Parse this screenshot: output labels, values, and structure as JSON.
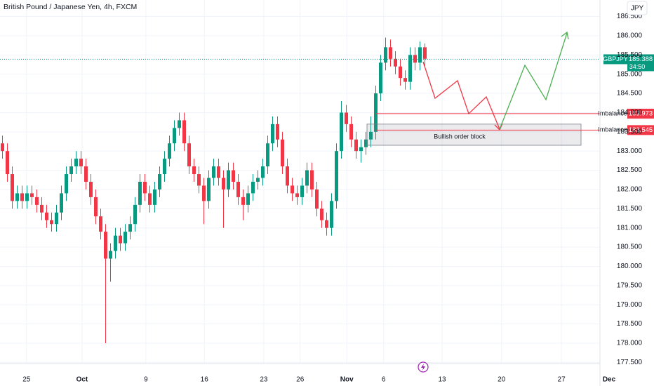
{
  "chart_data": {
    "type": "candlestick",
    "title": "British Pound / Japanese Yen, 4h, FXCM",
    "currency": "JPY",
    "up_color": "#089981",
    "down_color": "#f23645",
    "grid": true,
    "xlim": [
      0,
      133.14
    ],
    "xticks": [
      {
        "value": 5.4,
        "label": "25"
      },
      {
        "value": 16.7,
        "label": "Oct"
      },
      {
        "value": 29.7,
        "label": "9"
      },
      {
        "value": 41.6,
        "label": "16"
      },
      {
        "value": 53.7,
        "label": "23"
      },
      {
        "value": 61.1,
        "label": "26"
      },
      {
        "value": 70.6,
        "label": "Nov"
      },
      {
        "value": 78.1,
        "label": "6"
      },
      {
        "value": 90,
        "label": "13"
      },
      {
        "value": 102.1,
        "label": "20"
      },
      {
        "value": 114.3,
        "label": "27"
      },
      {
        "value": 124,
        "label": "Dec"
      }
    ],
    "ylim": [
      177.47,
      186.93
    ],
    "yticks": [
      {
        "value": 177.5,
        "label": "177.500"
      },
      {
        "value": 178,
        "label": "178.000"
      },
      {
        "value": 178.5,
        "label": "178.500"
      },
      {
        "value": 179,
        "label": "179.000"
      },
      {
        "value": 179.5,
        "label": "179.500"
      },
      {
        "value": 180,
        "label": "180.000"
      },
      {
        "value": 180.5,
        "label": "180.500"
      },
      {
        "value": 181,
        "label": "181.000"
      },
      {
        "value": 181.5,
        "label": "181.500"
      },
      {
        "value": 182,
        "label": "182.000"
      },
      {
        "value": 182.5,
        "label": "182.500"
      },
      {
        "value": 183,
        "label": "183.000"
      },
      {
        "value": 183.5,
        "label": "183.500"
      },
      {
        "value": 184,
        "label": "184.000"
      },
      {
        "value": 184.5,
        "label": "184.500"
      },
      {
        "value": 185,
        "label": "185.000"
      },
      {
        "value": 185.5,
        "label": "185.500"
      },
      {
        "value": 186,
        "label": "186.000"
      },
      {
        "value": 186.5,
        "label": "186.500"
      }
    ],
    "open": [
      183.2,
      183.0,
      182.4,
      181.7,
      181.9,
      181.7,
      181.9,
      181.8,
      181.6,
      181.4,
      181.2,
      181.1,
      181.4,
      181.9,
      182.4,
      182.6,
      182.8,
      182.6,
      182.2,
      181.8,
      181.3,
      180.9,
      180.2,
      180.4,
      180.8,
      180.6,
      180.9,
      181.1,
      181.6,
      182.2,
      181.9,
      181.6,
      182.0,
      182.4,
      182.8,
      183.2,
      183.6,
      183.8,
      183.2,
      182.6,
      182.4,
      182.1,
      181.7,
      182.3,
      182.6,
      182.3,
      182.0,
      182.5,
      182.2,
      181.8,
      181.6,
      181.9,
      182.2,
      182.3,
      182.6,
      183.2,
      183.7,
      183.3,
      182.6,
      182.1,
      181.9,
      181.8,
      182.1,
      182.5,
      182.0,
      181.5,
      181.2,
      181.0,
      181.7,
      183.0,
      184.0,
      183.7,
      183.3,
      183.0,
      183.1,
      183.3,
      183.5,
      184.5,
      185.3,
      185.7,
      185.4,
      185.2,
      184.9,
      184.8,
      185.5,
      185.3,
      185.7
    ],
    "high": [
      183.4,
      183.2,
      182.6,
      182.1,
      182.1,
      182.1,
      182.1,
      182.0,
      181.8,
      181.6,
      181.4,
      181.6,
      182.1,
      182.6,
      182.8,
      183.0,
      183.0,
      182.8,
      182.4,
      182.0,
      181.5,
      181.1,
      180.6,
      181.0,
      181.0,
      181.1,
      181.3,
      181.8,
      182.4,
      182.4,
      182.1,
      182.2,
      182.6,
      183.0,
      183.4,
      183.8,
      184.0,
      184.0,
      183.4,
      182.8,
      182.6,
      182.3,
      182.5,
      182.8,
      182.8,
      182.5,
      182.7,
      182.7,
      182.4,
      182.0,
      182.1,
      182.4,
      182.5,
      182.8,
      183.4,
      183.9,
      183.9,
      183.5,
      182.8,
      182.3,
      182.1,
      182.3,
      182.7,
      182.7,
      182.2,
      181.7,
      181.4,
      181.9,
      183.2,
      184.3,
      184.2,
      183.9,
      183.5,
      183.3,
      183.5,
      183.9,
      184.7,
      185.5,
      185.95,
      185.9,
      185.6,
      185.4,
      185.1,
      185.7,
      185.7,
      185.85,
      185.8
    ],
    "low": [
      182.8,
      182.2,
      181.5,
      181.5,
      181.5,
      181.5,
      181.6,
      181.4,
      181.2,
      181.0,
      180.9,
      180.9,
      181.2,
      181.7,
      182.2,
      182.4,
      182.4,
      182.0,
      181.6,
      181.1,
      180.7,
      178.0,
      179.6,
      180.2,
      180.4,
      180.4,
      180.7,
      180.9,
      181.4,
      181.7,
      181.4,
      181.4,
      181.8,
      182.2,
      182.6,
      183.0,
      183.4,
      183.0,
      182.4,
      182.2,
      181.9,
      181.1,
      181.5,
      182.1,
      182.1,
      181.0,
      181.8,
      182.0,
      181.6,
      181.2,
      181.4,
      181.7,
      182.0,
      182.1,
      182.4,
      183.0,
      183.1,
      182.4,
      181.9,
      181.7,
      181.6,
      181.6,
      181.9,
      181.8,
      181.3,
      181.0,
      180.8,
      180.8,
      181.5,
      182.8,
      183.5,
      183.1,
      182.8,
      182.7,
      182.9,
      183.1,
      183.3,
      184.3,
      185.1,
      185.2,
      185.0,
      184.7,
      184.6,
      184.6,
      185.1,
      185.1,
      185.2
    ],
    "close": [
      183.0,
      182.4,
      181.7,
      181.9,
      181.7,
      181.9,
      181.8,
      181.6,
      181.4,
      181.2,
      181.1,
      181.4,
      181.9,
      182.4,
      182.6,
      182.8,
      182.6,
      182.2,
      181.8,
      181.3,
      180.9,
      180.2,
      180.4,
      180.8,
      180.6,
      180.9,
      181.1,
      181.6,
      182.2,
      181.9,
      181.6,
      182.0,
      182.4,
      182.8,
      183.2,
      183.6,
      183.8,
      183.2,
      182.6,
      182.4,
      182.1,
      181.7,
      182.3,
      182.6,
      182.3,
      182.0,
      182.5,
      182.2,
      181.8,
      181.6,
      181.9,
      182.2,
      182.3,
      182.6,
      183.2,
      183.7,
      183.3,
      182.6,
      182.1,
      181.9,
      181.8,
      182.1,
      182.5,
      182.0,
      181.5,
      181.2,
      181.0,
      181.7,
      183.0,
      184.0,
      183.7,
      183.3,
      183.0,
      183.1,
      183.3,
      183.5,
      184.5,
      185.3,
      185.7,
      185.4,
      185.2,
      184.9,
      184.8,
      185.5,
      185.3,
      185.7,
      185.4
    ],
    "last_price": {
      "symbol": "GBPJPY",
      "value": 185.388,
      "countdown": "34:50",
      "color": "#089981"
    },
    "levels": [
      {
        "label": "Imbalance",
        "value": 183.973,
        "color": "#f23645"
      },
      {
        "label": "Imbalance",
        "value": 183.545,
        "color": "#f23645"
      }
    ],
    "order_block": {
      "label": "Bullish order block",
      "top": 183.7,
      "bottom": 183.15
    }
  }
}
